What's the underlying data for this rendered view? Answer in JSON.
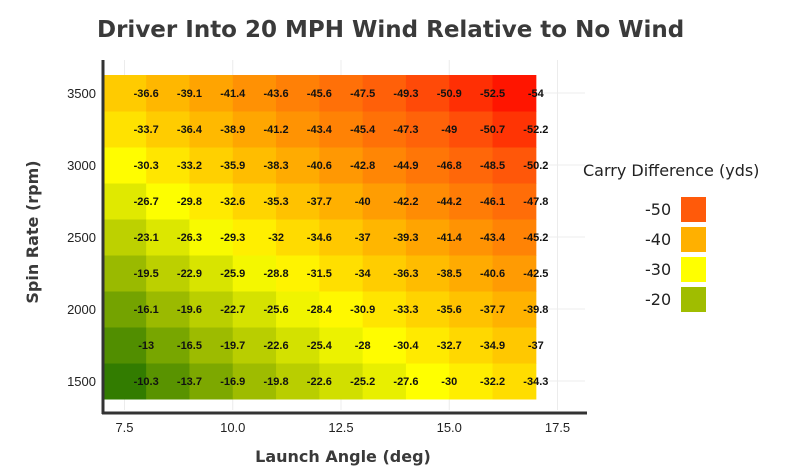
{
  "chart_data": {
    "type": "heatmap",
    "title": "Driver Into 20 MPH Wind Relative to No Wind",
    "xlabel": "Launch Angle (deg)",
    "ylabel": "Spin Rate (rpm)",
    "x": [
      7.5,
      8.5,
      9.5,
      10.5,
      11.5,
      12.5,
      13.5,
      14.5,
      15.5,
      16.5
    ],
    "y": [
      1500,
      1750,
      2000,
      2250,
      2500,
      2750,
      3000,
      3250,
      3500
    ],
    "xlim": [
      7.0,
      17.5
    ],
    "ylim": [
      1350,
      3650
    ],
    "x_ticks": [
      "7.5",
      "10.0",
      "12.5",
      "15.0",
      "17.5"
    ],
    "x_tick_values": [
      7.5,
      10.0,
      12.5,
      15.0,
      17.5
    ],
    "y_ticks": [
      "1500",
      "2000",
      "2500",
      "3000",
      "3500"
    ],
    "y_tick_values": [
      1500,
      2000,
      2500,
      3000,
      3500
    ],
    "values": [
      [
        -10.3,
        -13.7,
        -16.9,
        -19.8,
        -22.6,
        -25.2,
        -27.6,
        -30,
        -32.2,
        -34.3
      ],
      [
        -13,
        -16.5,
        -19.7,
        -22.6,
        -25.4,
        -28,
        -30.4,
        -32.7,
        -34.9,
        -37
      ],
      [
        -16.1,
        -19.6,
        -22.7,
        -25.6,
        -28.4,
        -30.9,
        -33.3,
        -35.6,
        -37.7,
        -39.8
      ],
      [
        -19.5,
        -22.9,
        -25.9,
        -28.8,
        -31.5,
        -34,
        -36.3,
        -38.5,
        -40.6,
        -42.5
      ],
      [
        -23.1,
        -26.3,
        -29.3,
        -32,
        -34.6,
        -37,
        -39.3,
        -41.4,
        -43.4,
        -45.2
      ],
      [
        -26.7,
        -29.8,
        -32.6,
        -35.3,
        -37.7,
        -40,
        -42.2,
        -44.2,
        -46.1,
        -47.8
      ],
      [
        -30.3,
        -33.2,
        -35.9,
        -38.3,
        -40.6,
        -42.8,
        -44.9,
        -46.8,
        -48.5,
        -50.2
      ],
      [
        -33.7,
        -36.4,
        -38.9,
        -41.2,
        -43.4,
        -45.4,
        -47.3,
        -49,
        -50.7,
        -52.2
      ],
      [
        -36.6,
        -39.1,
        -41.4,
        -43.6,
        -45.6,
        -47.5,
        -49.3,
        -50.9,
        -52.5,
        -54
      ]
    ],
    "legend": {
      "title": "Carry Difference (yds)",
      "placement": "right",
      "items": [
        {
          "label": "-50",
          "color": "#ff5a0a"
        },
        {
          "label": "-40",
          "color": "#ffb000"
        },
        {
          "label": "-30",
          "color": "#ffff00"
        },
        {
          "label": "-20",
          "color": "#a0bd00"
        }
      ]
    },
    "color_scale": [
      {
        "value": -10,
        "color": "#2f7a00"
      },
      {
        "value": -20,
        "color": "#a0bd00"
      },
      {
        "value": -30,
        "color": "#ffff00"
      },
      {
        "value": -40,
        "color": "#ffb000"
      },
      {
        "value": -50,
        "color": "#ff5a0a"
      },
      {
        "value": -54,
        "color": "#ff1500"
      }
    ],
    "grid": true
  }
}
